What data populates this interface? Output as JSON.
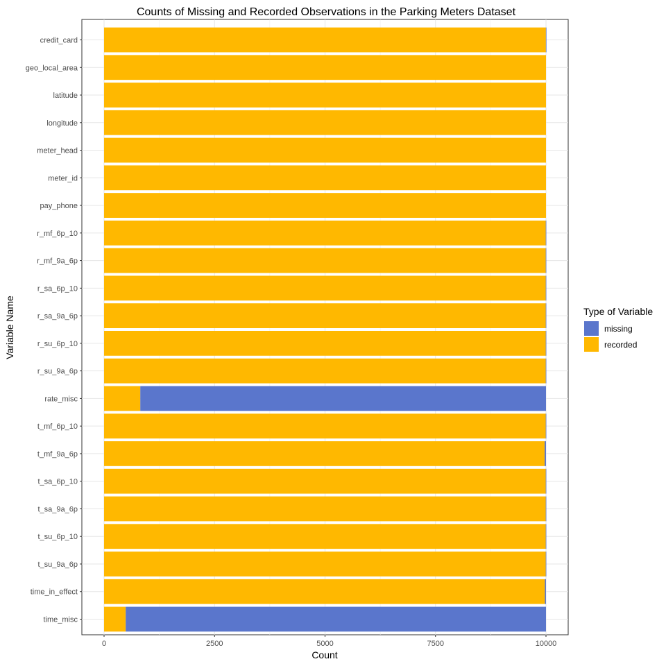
{
  "chart_data": {
    "type": "bar",
    "orientation": "horizontal",
    "stacked": true,
    "title": "Counts of Missing and Recorded Observations in the Parking Meters Dataset",
    "xlabel": "Count",
    "ylabel": "Variable Name",
    "xlim": [
      0,
      10000
    ],
    "xticks": [
      0,
      2500,
      5000,
      7500,
      10000
    ],
    "grid": true,
    "legend": {
      "title": "Type of Variable",
      "placement": "right",
      "entries": [
        {
          "name": "missing",
          "color": "#5a76cc"
        },
        {
          "name": "recorded",
          "color": "#ffb800"
        }
      ]
    },
    "categories": [
      "credit_card",
      "geo_local_area",
      "latitude",
      "longitude",
      "meter_head",
      "meter_id",
      "pay_phone",
      "r_mf_6p_10",
      "r_mf_9a_6p",
      "r_sa_6p_10",
      "r_sa_9a_6p",
      "r_su_6p_10",
      "r_su_9a_6p",
      "rate_misc",
      "t_mf_6p_10",
      "t_mf_9a_6p",
      "t_sa_6p_10",
      "t_sa_9a_6p",
      "t_su_6p_10",
      "t_su_9a_6p",
      "time_in_effect",
      "time_misc"
    ],
    "series": [
      {
        "name": "recorded",
        "values": [
          9998,
          10000,
          10000,
          10000,
          10000,
          10000,
          10000,
          9995,
          9995,
          9995,
          9995,
          9995,
          9995,
          820,
          9995,
          9970,
          9995,
          9995,
          9995,
          9995,
          9975,
          490
        ]
      },
      {
        "name": "missing",
        "values": [
          2,
          0,
          0,
          0,
          0,
          0,
          0,
          5,
          5,
          5,
          5,
          5,
          5,
          9180,
          5,
          30,
          5,
          5,
          5,
          5,
          25,
          9510
        ]
      }
    ]
  }
}
